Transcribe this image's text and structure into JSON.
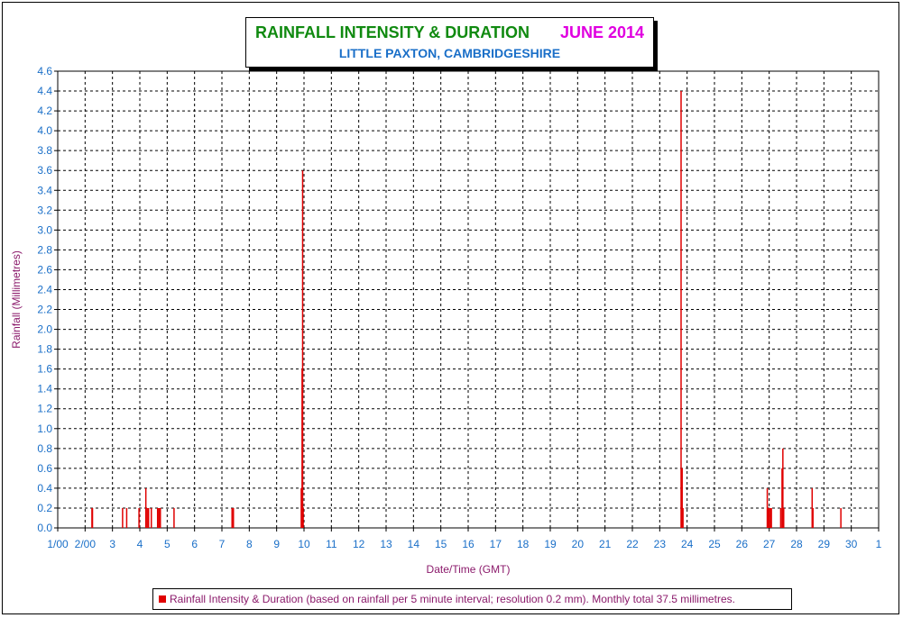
{
  "title": {
    "main": "RAINFALL INTENSITY & DURATION",
    "month": "JUNE 2014",
    "subtitle": "LITTLE PAXTON, CAMBRIDGESHIRE"
  },
  "legend": {
    "text": "Rainfall Intensity & Duration (based on rainfall per 5 minute interval; resolution 0.2 mm). Monthly total 37.5 millimetres."
  },
  "colors": {
    "series": "#e00000",
    "tick_text": "#1a6fc8",
    "axis_label": "#8b1a6b",
    "title_main": "#108a10",
    "title_month": "#e000e0"
  },
  "chart_data": {
    "type": "bar",
    "title": "RAINFALL INTENSITY & DURATION",
    "subtitle": "LITTLE PAXTON, CAMBRIDGESHIRE",
    "xlabel": "Date/Time (GMT)",
    "ylabel": "Rainfall (Millimetres)",
    "xlim": [
      1,
      31
    ],
    "ylim": [
      0,
      4.6
    ],
    "y_ticks": [
      "0.0",
      "0.2",
      "0.4",
      "0.6",
      "0.8",
      "1.0",
      "1.2",
      "1.4",
      "1.6",
      "1.8",
      "2.0",
      "2.2",
      "2.4",
      "2.6",
      "2.8",
      "3.0",
      "3.2",
      "3.4",
      "3.6",
      "3.8",
      "4.0",
      "4.2",
      "4.4",
      "4.6"
    ],
    "x_ticks": [
      "1/00",
      "2/00",
      "3",
      "4",
      "5",
      "6",
      "7",
      "8",
      "9",
      "10",
      "11",
      "12",
      "13",
      "14",
      "15",
      "16",
      "17",
      "18",
      "19",
      "20",
      "21",
      "22",
      "23",
      "24",
      "25",
      "26",
      "27",
      "28",
      "29",
      "30",
      "1"
    ],
    "grid": true,
    "legend_position": "bottom",
    "series": [
      {
        "name": "Rainfall Intensity & Duration",
        "points": [
          {
            "x": 2.25,
            "y": 0.2
          },
          {
            "x": 2.27,
            "y": 0.2
          },
          {
            "x": 3.37,
            "y": 0.2
          },
          {
            "x": 3.52,
            "y": 0.2
          },
          {
            "x": 3.97,
            "y": 0.2
          },
          {
            "x": 4.22,
            "y": 0.4
          },
          {
            "x": 4.27,
            "y": 0.2
          },
          {
            "x": 4.32,
            "y": 0.2
          },
          {
            "x": 4.42,
            "y": 0.2
          },
          {
            "x": 4.65,
            "y": 0.2
          },
          {
            "x": 4.7,
            "y": 0.2
          },
          {
            "x": 4.75,
            "y": 0.2
          },
          {
            "x": 5.25,
            "y": 0.2
          },
          {
            "x": 7.37,
            "y": 0.2
          },
          {
            "x": 7.42,
            "y": 0.2
          },
          {
            "x": 9.9,
            "y": 0.4
          },
          {
            "x": 9.93,
            "y": 1.6
          },
          {
            "x": 9.95,
            "y": 3.6
          },
          {
            "x": 9.97,
            "y": 0.2
          },
          {
            "x": 23.78,
            "y": 4.4
          },
          {
            "x": 23.82,
            "y": 0.6
          },
          {
            "x": 23.85,
            "y": 0.2
          },
          {
            "x": 26.93,
            "y": 0.4
          },
          {
            "x": 26.97,
            "y": 0.2
          },
          {
            "x": 27.0,
            "y": 0.2
          },
          {
            "x": 27.05,
            "y": 0.2
          },
          {
            "x": 27.08,
            "y": 0.2
          },
          {
            "x": 27.42,
            "y": 0.2
          },
          {
            "x": 27.47,
            "y": 0.6
          },
          {
            "x": 27.5,
            "y": 0.8
          },
          {
            "x": 27.53,
            "y": 0.2
          },
          {
            "x": 28.57,
            "y": 0.4
          },
          {
            "x": 28.6,
            "y": 0.2
          },
          {
            "x": 29.62,
            "y": 0.2
          }
        ]
      }
    ]
  }
}
